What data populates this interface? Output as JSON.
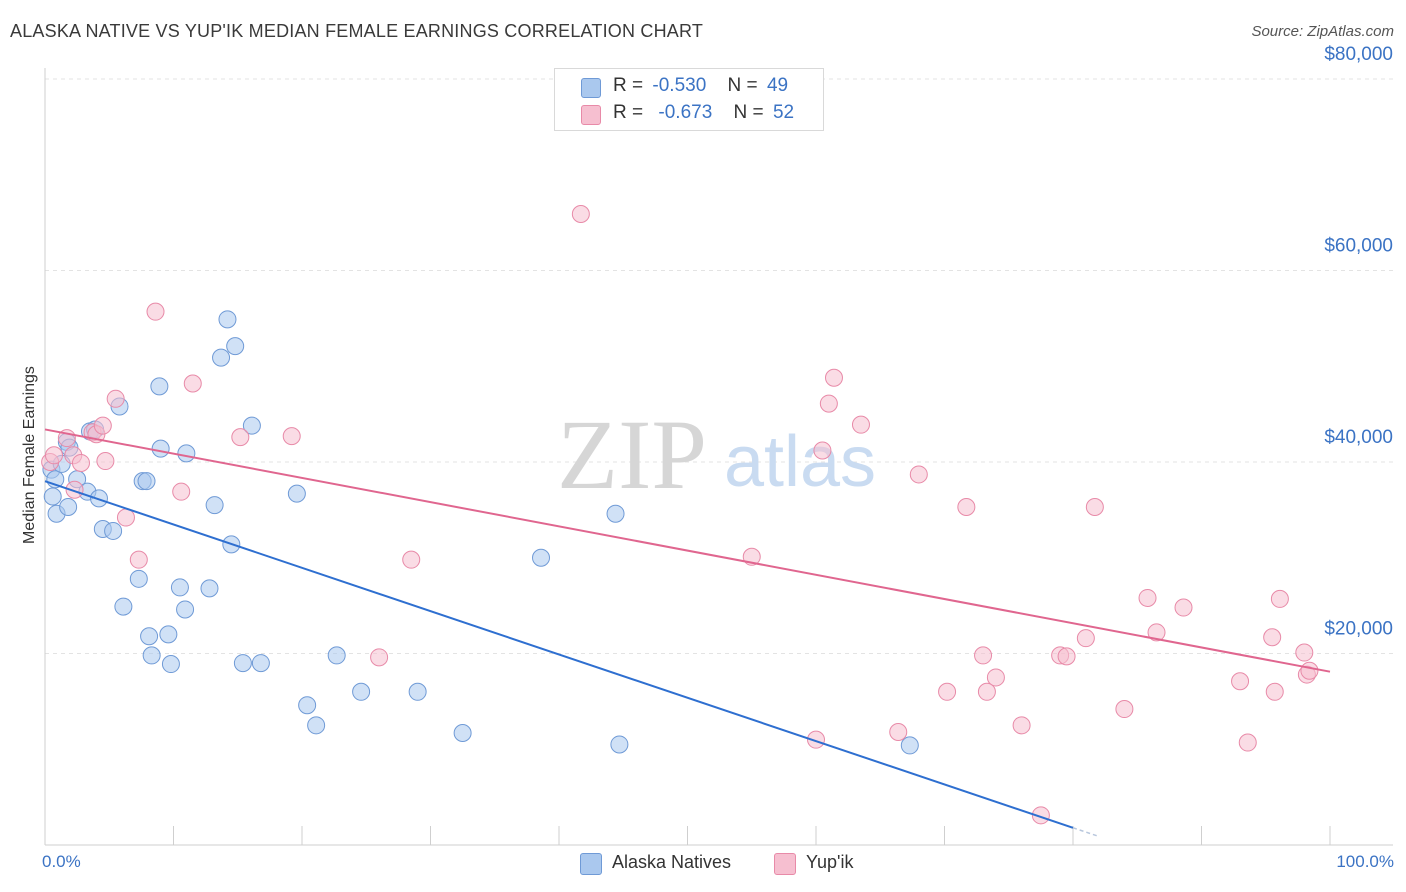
{
  "title": "ALASKA NATIVE VS YUP'IK MEDIAN FEMALE EARNINGS CORRELATION CHART",
  "source": "Source: ZipAtlas.com",
  "watermark": {
    "zip": "ZIP",
    "atlas": "atlas"
  },
  "legend": {
    "rows": [
      {
        "r_label": "R =",
        "r_value": "-0.530",
        "n_label": "N =",
        "n_value": "49"
      },
      {
        "r_label": "R =",
        "r_value": "-0.673",
        "n_label": "N =",
        "n_value": "52"
      }
    ]
  },
  "bottom_legend": [
    "Alaska Natives",
    "Yup'ik"
  ],
  "colors": {
    "blue_fill": "#aac8ee",
    "blue_stroke": "#6f9ad6",
    "blue_line": "#2e6fd0",
    "pink_fill": "#f6bfd0",
    "pink_stroke": "#e88aa8",
    "pink_line": "#e0668f",
    "grid": "#e3e3e3",
    "tick_text": "#3b73c4"
  },
  "chart_data": {
    "type": "scatter",
    "title": "ALASKA NATIVE VS YUP'IK MEDIAN FEMALE EARNINGS CORRELATION CHART",
    "xlabel": "",
    "ylabel": "Median Female Earnings",
    "x_tick_labels": [
      "0.0%",
      "100.0%"
    ],
    "y_tick_labels": [
      "$20,000",
      "$40,000",
      "$60,000",
      "$80,000"
    ],
    "y_ticks": [
      20000,
      40000,
      60000,
      80000
    ],
    "xlim": [
      0,
      100
    ],
    "ylim": [
      0,
      82000
    ],
    "grid": true,
    "series": [
      {
        "name": "Alaska Natives",
        "r": -0.53,
        "n": 49,
        "trend": {
          "x0": 0,
          "y0": 38000,
          "x1": 80,
          "y1": 1800,
          "dash_to_x": 82,
          "dash_to_y": 900
        },
        "points": [
          [
            0.5,
            39200
          ],
          [
            0.6,
            36400
          ],
          [
            0.8,
            38200
          ],
          [
            0.9,
            34600
          ],
          [
            1.3,
            39800
          ],
          [
            1.8,
            35300
          ],
          [
            1.7,
            42100
          ],
          [
            1.9,
            41500
          ],
          [
            2.5,
            38200
          ],
          [
            3.3,
            36900
          ],
          [
            3.5,
            43200
          ],
          [
            3.9,
            43400
          ],
          [
            4.2,
            36200
          ],
          [
            4.5,
            33000
          ],
          [
            5.3,
            32800
          ],
          [
            5.8,
            45800
          ],
          [
            6.1,
            24900
          ],
          [
            7.3,
            27800
          ],
          [
            7.6,
            38000
          ],
          [
            7.9,
            38000
          ],
          [
            8.1,
            21800
          ],
          [
            8.3,
            19800
          ],
          [
            8.9,
            47900
          ],
          [
            9.0,
            41400
          ],
          [
            9.6,
            22000
          ],
          [
            9.8,
            18900
          ],
          [
            10.5,
            26900
          ],
          [
            10.9,
            24600
          ],
          [
            11.0,
            40900
          ],
          [
            12.8,
            26800
          ],
          [
            13.2,
            35500
          ],
          [
            13.7,
            50900
          ],
          [
            14.2,
            54900
          ],
          [
            14.5,
            31400
          ],
          [
            14.8,
            52100
          ],
          [
            15.4,
            19000
          ],
          [
            16.1,
            43800
          ],
          [
            16.8,
            19000
          ],
          [
            19.6,
            36700
          ],
          [
            20.4,
            14600
          ],
          [
            21.1,
            12500
          ],
          [
            22.7,
            19800
          ],
          [
            24.6,
            16000
          ],
          [
            29.0,
            16000
          ],
          [
            32.5,
            11700
          ],
          [
            38.6,
            30000
          ],
          [
            44.4,
            34600
          ],
          [
            44.7,
            10500
          ],
          [
            67.3,
            10400
          ]
        ]
      },
      {
        "name": "Yup'ik",
        "r": -0.673,
        "n": 52,
        "trend": {
          "x0": 0,
          "y0": 43400,
          "x1": 100,
          "y1": 18100
        },
        "points": [
          [
            0.4,
            40000
          ],
          [
            0.7,
            40700
          ],
          [
            1.7,
            42500
          ],
          [
            2.2,
            40700
          ],
          [
            2.3,
            37100
          ],
          [
            2.8,
            39900
          ],
          [
            3.7,
            43100
          ],
          [
            4.0,
            42900
          ],
          [
            4.5,
            43800
          ],
          [
            4.7,
            40100
          ],
          [
            5.5,
            46600
          ],
          [
            6.3,
            34200
          ],
          [
            7.3,
            29800
          ],
          [
            8.6,
            55700
          ],
          [
            10.6,
            36900
          ],
          [
            11.5,
            48200
          ],
          [
            15.2,
            42600
          ],
          [
            19.2,
            42700
          ],
          [
            26.0,
            19600
          ],
          [
            28.5,
            29800
          ],
          [
            41.7,
            65900
          ],
          [
            55.0,
            30100
          ],
          [
            60.0,
            11000
          ],
          [
            60.5,
            41200
          ],
          [
            61.0,
            46100
          ],
          [
            61.4,
            48800
          ],
          [
            63.5,
            43900
          ],
          [
            66.4,
            11800
          ],
          [
            68.0,
            38700
          ],
          [
            70.2,
            16000
          ],
          [
            71.7,
            35300
          ],
          [
            73.0,
            19800
          ],
          [
            73.3,
            16000
          ],
          [
            74.0,
            17500
          ],
          [
            76.0,
            12500
          ],
          [
            77.5,
            3100
          ],
          [
            79.0,
            19800
          ],
          [
            79.5,
            19700
          ],
          [
            81.0,
            21600
          ],
          [
            81.7,
            35300
          ],
          [
            84.0,
            14200
          ],
          [
            85.8,
            25800
          ],
          [
            86.5,
            22200
          ],
          [
            88.6,
            24800
          ],
          [
            93.0,
            17100
          ],
          [
            93.6,
            10700
          ],
          [
            95.5,
            21700
          ],
          [
            95.7,
            16000
          ],
          [
            96.1,
            25700
          ],
          [
            98.0,
            20100
          ],
          [
            98.2,
            17800
          ],
          [
            98.4,
            18200
          ]
        ]
      }
    ]
  }
}
